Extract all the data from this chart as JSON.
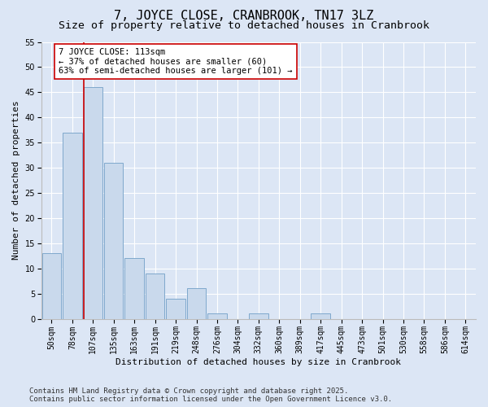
{
  "title": "7, JOYCE CLOSE, CRANBROOK, TN17 3LZ",
  "subtitle": "Size of property relative to detached houses in Cranbrook",
  "xlabel": "Distribution of detached houses by size in Cranbrook",
  "ylabel": "Number of detached properties",
  "categories": [
    "50sqm",
    "78sqm",
    "107sqm",
    "135sqm",
    "163sqm",
    "191sqm",
    "219sqm",
    "248sqm",
    "276sqm",
    "304sqm",
    "332sqm",
    "360sqm",
    "389sqm",
    "417sqm",
    "445sqm",
    "473sqm",
    "501sqm",
    "530sqm",
    "558sqm",
    "586sqm",
    "614sqm"
  ],
  "values": [
    13,
    37,
    46,
    31,
    12,
    9,
    4,
    6,
    1,
    0,
    1,
    0,
    0,
    1,
    0,
    0,
    0,
    0,
    0,
    0,
    0
  ],
  "bar_color": "#c9d9ec",
  "bar_edge_color": "#7fa8cc",
  "ylim": [
    0,
    55
  ],
  "yticks": [
    0,
    5,
    10,
    15,
    20,
    25,
    30,
    35,
    40,
    45,
    50,
    55
  ],
  "vline_x_index": 2,
  "vline_color": "#cc0000",
  "annotation_text": "7 JOYCE CLOSE: 113sqm\n← 37% of detached houses are smaller (60)\n63% of semi-detached houses are larger (101) →",
  "annotation_box_facecolor": "#ffffff",
  "annotation_box_edgecolor": "#cc0000",
  "background_color": "#dce6f5",
  "grid_color": "#ffffff",
  "footer_text": "Contains HM Land Registry data © Crown copyright and database right 2025.\nContains public sector information licensed under the Open Government Licence v3.0.",
  "title_fontsize": 11,
  "subtitle_fontsize": 9.5,
  "axis_label_fontsize": 8,
  "tick_fontsize": 7,
  "annotation_fontsize": 7.5,
  "footer_fontsize": 6.5
}
